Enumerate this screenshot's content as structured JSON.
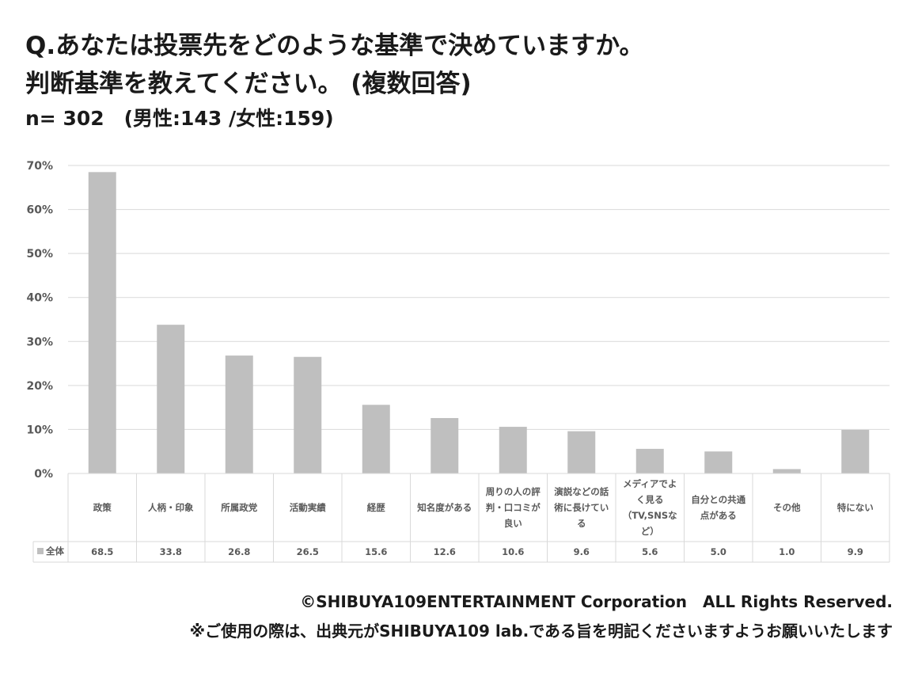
{
  "title": {
    "line1": "Q.あなたは投票先をどのような基準で決めていますか。",
    "line2": "判断基準を教えてください。 (複数回答)"
  },
  "sample": "n= 302　(男性:143 /女性:159)",
  "chart_data": {
    "type": "bar",
    "unit": "%",
    "ylim": [
      0,
      70
    ],
    "yticks": [
      "0%",
      "10%",
      "20%",
      "30%",
      "40%",
      "50%",
      "60%",
      "70%"
    ],
    "grid": true,
    "bar_color": "#bfbfbf",
    "categories": [
      [
        "政策"
      ],
      [
        "人柄・印象"
      ],
      [
        "所属政党"
      ],
      [
        "活動実績"
      ],
      [
        "経歴"
      ],
      [
        "知名度がある"
      ],
      [
        "周りの人の評",
        "判・口コミが",
        "良い"
      ],
      [
        "演説などの話",
        "術に長けてい",
        "る"
      ],
      [
        "メディアでよ",
        "く見る",
        "（TV,SNSな",
        "ど）"
      ],
      [
        "自分との共通",
        "点がある"
      ],
      [
        "その他"
      ],
      [
        "特にない"
      ]
    ],
    "series": [
      {
        "name": "全体",
        "values": [
          68.5,
          33.8,
          26.8,
          26.5,
          15.6,
          12.6,
          10.6,
          9.6,
          5.6,
          5.0,
          1.0,
          9.9
        ],
        "labels": [
          "68.5",
          "33.8",
          "26.8",
          "26.5",
          "15.6",
          "12.6",
          "10.6",
          "9.6",
          "5.6",
          "5.0",
          "1.0",
          "9.9"
        ]
      }
    ]
  },
  "footer": {
    "copyright": "©SHIBUYA109ENTERTAINMENT Corporation　ALL Rights Reserved.",
    "notice": "※ご使用の際は、出典元がSHIBUYA109 lab.である旨を明記くださいますようお願いいたします"
  }
}
